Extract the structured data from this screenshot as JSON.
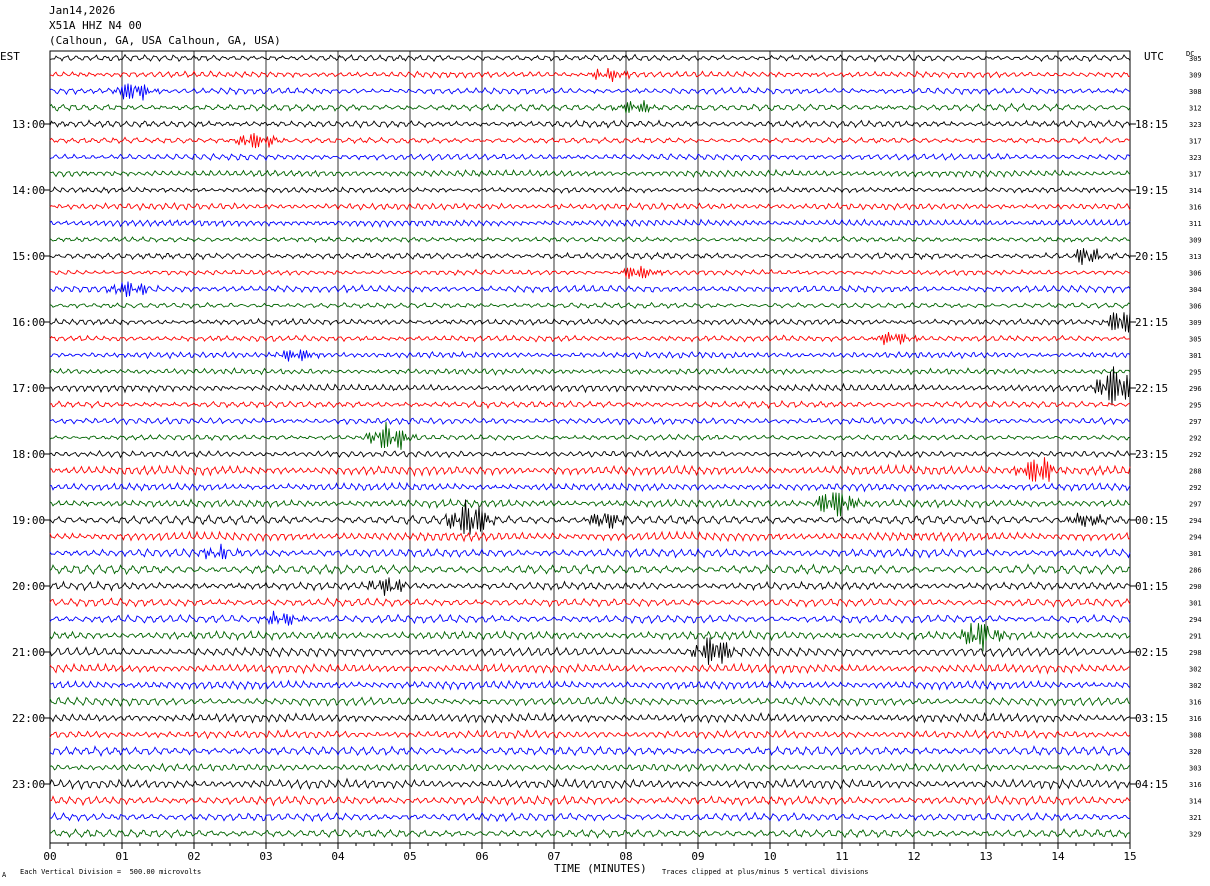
{
  "chart_data": {
    "type": "line",
    "title_lines": [
      "Jan14,2026",
      "X51A HHZ N4 00",
      "(Calhoun, GA, USA Calhoun, GA, USA)"
    ],
    "left_axis_label": "EST",
    "right_axis_label": "UTC",
    "dc_label": "DC",
    "xlabel": "TIME (MINUTES)",
    "x_ticks": [
      "00",
      "01",
      "02",
      "03",
      "04",
      "05",
      "06",
      "07",
      "08",
      "09",
      "10",
      "11",
      "12",
      "13",
      "14",
      "15"
    ],
    "xlim": [
      0,
      15
    ],
    "left_hour_labels": [
      "13:00",
      "14:00",
      "15:00",
      "16:00",
      "17:00",
      "18:00",
      "19:00",
      "20:00",
      "21:00",
      "22:00",
      "23:00"
    ],
    "right_hour_labels": [
      "18:15",
      "19:15",
      "20:15",
      "21:15",
      "22:15",
      "23:15",
      "00:15",
      "01:15",
      "02:15",
      "03:15",
      "04:15"
    ],
    "dc_values": [
      "305",
      "309",
      "308",
      "312",
      "323",
      "317",
      "323",
      "317",
      "314",
      "316",
      "311",
      "309",
      "313",
      "306",
      "304",
      "306",
      "309",
      "305",
      "301",
      "295",
      "296",
      "295",
      "297",
      "292",
      "292",
      "288",
      "292",
      "297",
      "294",
      "294",
      "301",
      "286",
      "290",
      "301",
      "294",
      "291",
      "298",
      "302",
      "302",
      "316",
      "316",
      "308",
      "320",
      "303",
      "316",
      "314",
      "321",
      "329"
    ],
    "trace_colors": [
      "#000000",
      "#ff0000",
      "#0000ff",
      "#006400"
    ],
    "traces_per_hour": 4,
    "first_hour_offset_traces": 4,
    "events": [
      {
        "trace": 2,
        "minute": 1.05,
        "amp": 1.5
      },
      {
        "trace": 1,
        "minute": 7.65,
        "amp": 1.0
      },
      {
        "trace": 3,
        "minute": 8.0,
        "amp": 1.0
      },
      {
        "trace": 5,
        "minute": 2.75,
        "amp": 1.4
      },
      {
        "trace": 12,
        "minute": 14.3,
        "amp": 1.2
      },
      {
        "trace": 13,
        "minute": 8.05,
        "amp": 1.1
      },
      {
        "trace": 14,
        "minute": 1.0,
        "amp": 1.2
      },
      {
        "trace": 16,
        "minute": 14.8,
        "amp": 2.0
      },
      {
        "trace": 17,
        "minute": 11.6,
        "amp": 1.0
      },
      {
        "trace": 18,
        "minute": 3.3,
        "amp": 1.1
      },
      {
        "trace": 20,
        "minute": 14.7,
        "amp": 3.0
      },
      {
        "trace": 23,
        "minute": 4.6,
        "amp": 2.2
      },
      {
        "trace": 25,
        "minute": 13.6,
        "amp": 2.0
      },
      {
        "trace": 27,
        "minute": 10.8,
        "amp": 2.2
      },
      {
        "trace": 28,
        "minute": 5.7,
        "amp": 3.0
      },
      {
        "trace": 28,
        "minute": 7.6,
        "amp": 1.3
      },
      {
        "trace": 28,
        "minute": 14.3,
        "amp": 1.0
      },
      {
        "trace": 30,
        "minute": 2.2,
        "amp": 0.9
      },
      {
        "trace": 32,
        "minute": 4.6,
        "amp": 1.2
      },
      {
        "trace": 34,
        "minute": 3.1,
        "amp": 1.0
      },
      {
        "trace": 35,
        "minute": 12.8,
        "amp": 2.0
      },
      {
        "trace": 36,
        "minute": 9.1,
        "amp": 2.2
      }
    ],
    "footer_left": "Each Vertical Division =  500.00 microvolts",
    "footer_right": "Traces clipped at plus/minus 5 vertical divisions",
    "corner_mark": "A"
  }
}
